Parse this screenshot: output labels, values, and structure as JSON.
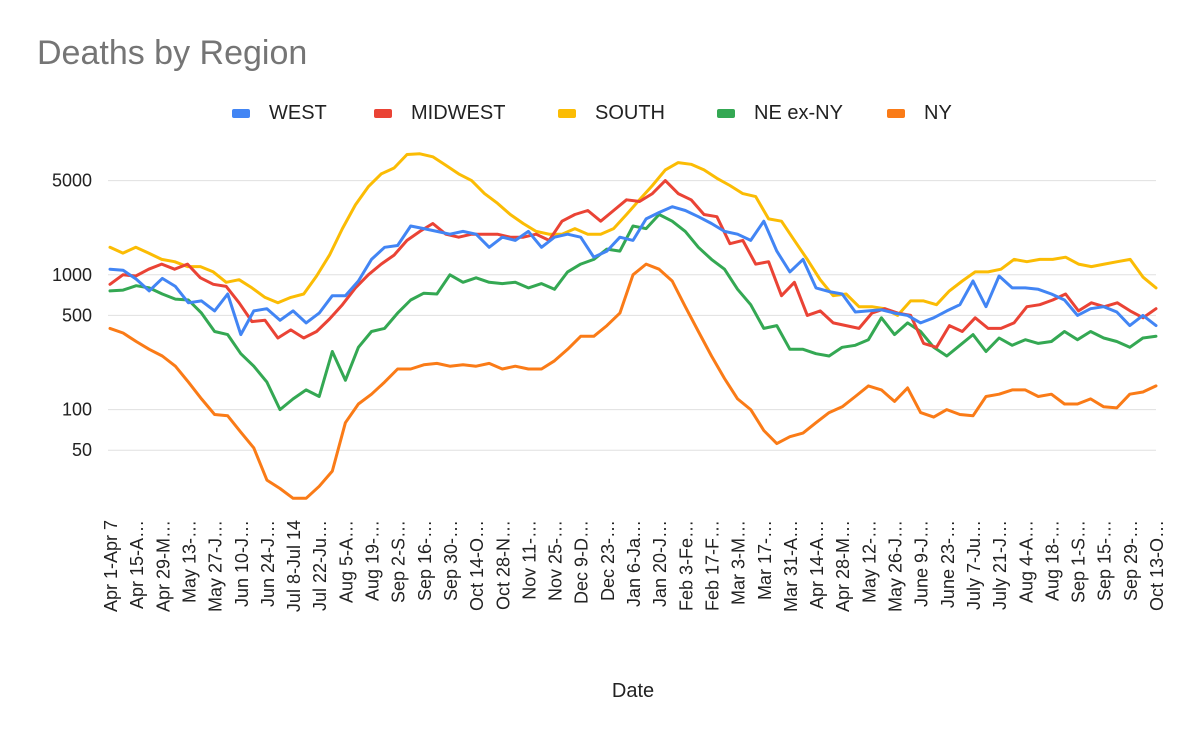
{
  "chart_data": {
    "type": "line",
    "title": "Deaths by Region",
    "xlabel": "Date",
    "ylabel": "",
    "yscale": "log",
    "ylim": [
      18,
      10000
    ],
    "yticks": [
      50,
      100,
      500,
      1000,
      5000
    ],
    "ytick_labels": [
      "50",
      "100",
      "500",
      "1000",
      "5000"
    ],
    "grid": "horizontal-at-ticks",
    "legend_position": "top",
    "x_tick_labels": [
      "Apr 1-Apr 7",
      "Apr 15-A…",
      "Apr 29-M…",
      "May 13-…",
      "May 27-J…",
      "Jun 10-J…",
      "Jun 24-J…",
      "Jul 8-Jul 14",
      "Jul 22-Ju…",
      "Aug 5-A…",
      "Aug 19-…",
      "Sep 2-S…",
      "Sep 16-…",
      "Sep 30-…",
      "Oct 14-O…",
      "Oct 28-N…",
      "Nov 11-…",
      "Nov 25-…",
      "Dec 9-D…",
      "Dec 23-…",
      "Jan 6-Ja…",
      "Jan 20-J…",
      "Feb 3-Fe…",
      "Feb 17-F…",
      "Mar 3-M…",
      "Mar 17-…",
      "Mar 31-A…",
      "Apr 14-A…",
      "Apr 28-M…",
      "May 12-…",
      "May 26-J…",
      "June 9-J…",
      "June 23-…",
      "July 7-Ju…",
      "July 21-J…",
      "Aug 4-A…",
      "Aug 18-…",
      "Sep 1-S…",
      "Sep 15-…",
      "Sep 29-…",
      "Oct 13-O…"
    ],
    "series": [
      {
        "name": "WEST",
        "color": "#4285F4",
        "values": [
          1100,
          1080,
          930,
          760,
          940,
          820,
          620,
          640,
          540,
          720,
          360,
          540,
          560,
          460,
          540,
          440,
          520,
          700,
          700,
          900,
          1300,
          1600,
          1650,
          2300,
          2200,
          2100,
          2000,
          2100,
          2000,
          1600,
          1900,
          1800,
          2100,
          1600,
          1900,
          2000,
          1900,
          1350,
          1500,
          1900,
          1800,
          2600,
          2900,
          3200,
          3000,
          2700,
          2400,
          2100,
          2000,
          1800,
          2500,
          1500,
          1050,
          1300,
          800,
          750,
          720,
          530,
          540,
          550,
          520,
          500,
          440,
          480,
          540,
          600,
          900,
          580,
          980,
          800,
          800,
          780,
          720,
          650,
          500,
          560,
          580,
          530,
          420,
          500,
          420
        ]
      },
      {
        "name": "MIDWEST",
        "color": "#EA4335",
        "values": [
          850,
          1000,
          980,
          1100,
          1200,
          1100,
          1200,
          950,
          850,
          820,
          620,
          450,
          460,
          340,
          390,
          340,
          380,
          470,
          600,
          800,
          1000,
          1200,
          1400,
          1800,
          2100,
          2400,
          2000,
          1900,
          2000,
          2000,
          2000,
          1900,
          1900,
          2000,
          1800,
          2500,
          2800,
          3000,
          2500,
          3000,
          3600,
          3500,
          4000,
          5000,
          4000,
          3600,
          2800,
          2700,
          1700,
          1800,
          1200,
          1250,
          700,
          880,
          500,
          540,
          440,
          420,
          400,
          520,
          560,
          520,
          500,
          310,
          290,
          420,
          380,
          480,
          400,
          400,
          440,
          580,
          600,
          650,
          720,
          540,
          620,
          580,
          620,
          540,
          480,
          560
        ]
      },
      {
        "name": "SOUTH",
        "color": "#FBBC04",
        "values": [
          1600,
          1450,
          1600,
          1450,
          1300,
          1250,
          1150,
          1150,
          1050,
          880,
          920,
          800,
          680,
          620,
          680,
          720,
          980,
          1400,
          2200,
          3300,
          4500,
          5600,
          6200,
          7800,
          7900,
          7500,
          6500,
          5600,
          5000,
          4000,
          3400,
          2800,
          2400,
          2100,
          2000,
          2000,
          2200,
          2000,
          2000,
          2200,
          2800,
          3600,
          4600,
          6000,
          6800,
          6600,
          6000,
          5200,
          4600,
          4000,
          3800,
          2600,
          2500,
          1800,
          1300,
          920,
          700,
          720,
          580,
          580,
          560,
          500,
          640,
          640,
          600,
          760,
          900,
          1050,
          1050,
          1100,
          1300,
          1250,
          1300,
          1300,
          1350,
          1200,
          1150,
          1200,
          1250,
          1300,
          960,
          800
        ]
      },
      {
        "name": "NE ex-NY",
        "color": "#34A853",
        "values": [
          760,
          770,
          830,
          800,
          720,
          660,
          650,
          520,
          380,
          360,
          260,
          210,
          160,
          100,
          120,
          140,
          125,
          270,
          165,
          290,
          380,
          400,
          520,
          650,
          730,
          720,
          1000,
          880,
          950,
          880,
          860,
          880,
          800,
          860,
          780,
          1050,
          1200,
          1300,
          1550,
          1500,
          2300,
          2200,
          2800,
          2500,
          2100,
          1600,
          1300,
          1100,
          780,
          600,
          400,
          420,
          280,
          280,
          260,
          250,
          290,
          300,
          330,
          480,
          360,
          440,
          380,
          290,
          250,
          300,
          360,
          270,
          340,
          300,
          330,
          310,
          320,
          380,
          330,
          380,
          340,
          320,
          290,
          340,
          350
        ]
      },
      {
        "name": "NY",
        "color": "#FA7B17",
        "values": [
          400,
          370,
          320,
          280,
          250,
          210,
          160,
          120,
          92,
          90,
          68,
          52,
          30,
          26,
          22,
          22,
          27,
          35,
          80,
          110,
          130,
          160,
          200,
          200,
          215,
          220,
          210,
          215,
          210,
          220,
          200,
          210,
          200,
          200,
          230,
          280,
          350,
          350,
          420,
          520,
          1000,
          1200,
          1100,
          900,
          580,
          380,
          250,
          170,
          120,
          100,
          70,
          56,
          63,
          67,
          80,
          95,
          105,
          125,
          150,
          140,
          115,
          145,
          95,
          88,
          100,
          92,
          90,
          125,
          130,
          140,
          140,
          125,
          130,
          110,
          110,
          120,
          105,
          103,
          130,
          135,
          150
        ]
      }
    ]
  }
}
